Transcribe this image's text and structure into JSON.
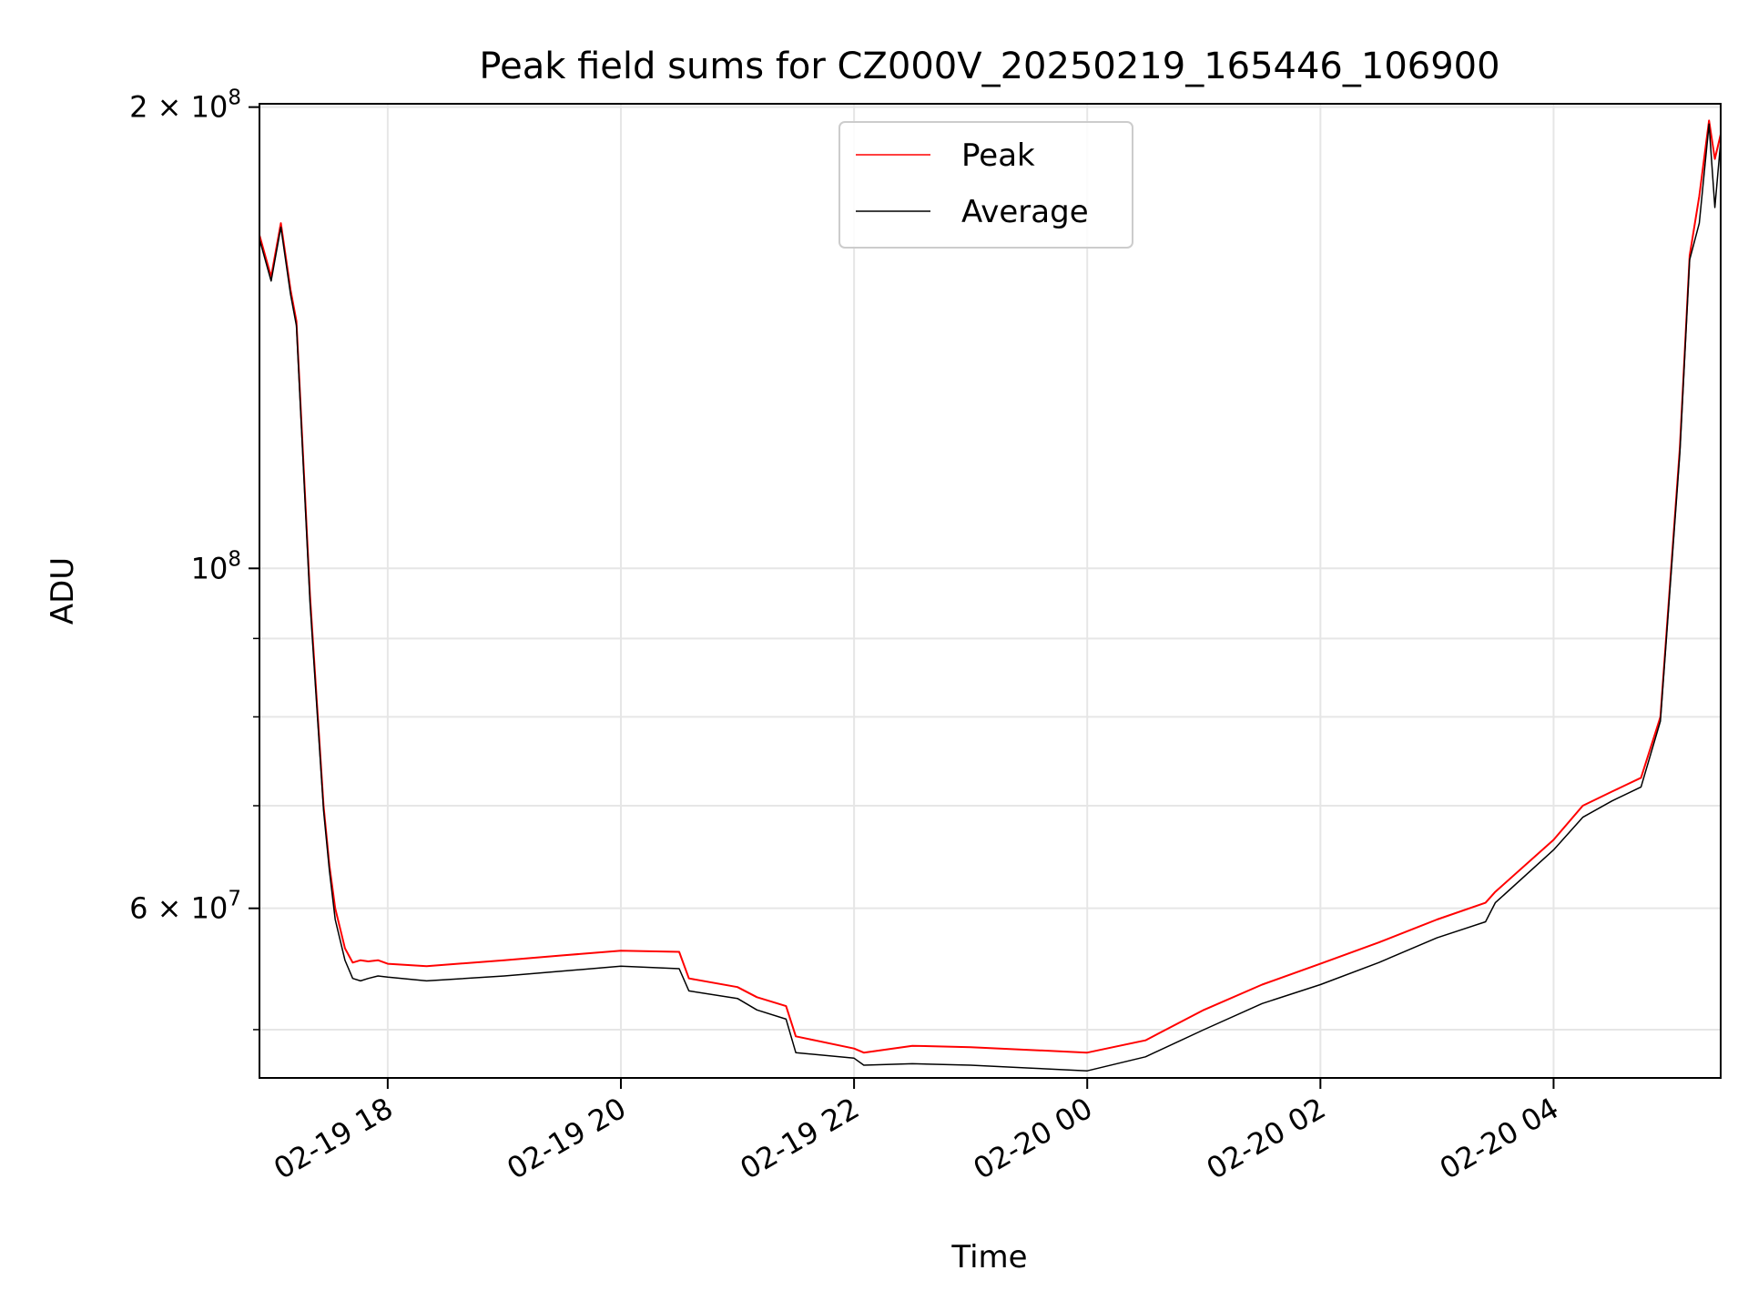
{
  "chart_data": {
    "type": "line",
    "title": "Peak field sums for CZ000V_20250219_165446_106900",
    "xlabel": "Time",
    "ylabel": "ADU",
    "y_scale": "log",
    "grid": true,
    "legend_placement": "upper center",
    "x_range": [
      "2025-02-19 16:54",
      "2025-02-20 05:26"
    ],
    "ylim": [
      46500000,
      201000000
    ],
    "x_ticks": [
      {
        "x": "2025-02-19 18:00",
        "label": "02-19 18"
      },
      {
        "x": "2025-02-19 20:00",
        "label": "02-19 20"
      },
      {
        "x": "2025-02-19 22:00",
        "label": "02-19 22"
      },
      {
        "x": "2025-02-20 00:00",
        "label": "02-20 00"
      },
      {
        "x": "2025-02-20 02:00",
        "label": "02-20 02"
      },
      {
        "x": "2025-02-20 04:00",
        "label": "02-20 04"
      }
    ],
    "y_ticks": [
      {
        "value": 200000000,
        "base": "2 × 10",
        "exp": "8"
      },
      {
        "value": 100000000,
        "base": "10",
        "exp": "8"
      },
      {
        "value": 60000000,
        "base": "6 × 10",
        "exp": "7"
      }
    ],
    "y_minor_ticks": [
      50000000,
      70000000,
      80000000,
      90000000
    ],
    "series": [
      {
        "name": "Peak",
        "color": "#ff0000",
        "x": [
          "2025-02-19 16:54",
          "2025-02-19 17:00",
          "2025-02-19 17:05",
          "2025-02-19 17:10",
          "2025-02-19 17:13",
          "2025-02-19 17:20",
          "2025-02-19 17:27",
          "2025-02-19 17:30",
          "2025-02-19 17:33",
          "2025-02-19 17:38",
          "2025-02-19 17:42",
          "2025-02-19 17:46",
          "2025-02-19 17:50",
          "2025-02-19 17:55",
          "2025-02-19 18:00",
          "2025-02-19 18:20",
          "2025-02-19 19:00",
          "2025-02-19 19:30",
          "2025-02-19 20:00",
          "2025-02-19 20:30",
          "2025-02-19 20:35",
          "2025-02-19 21:00",
          "2025-02-19 21:10",
          "2025-02-19 21:25",
          "2025-02-19 21:30",
          "2025-02-19 22:00",
          "2025-02-19 22:05",
          "2025-02-19 22:30",
          "2025-02-19 23:00",
          "2025-02-19 23:30",
          "2025-02-20 00:00",
          "2025-02-20 00:30",
          "2025-02-20 01:00",
          "2025-02-20 01:30",
          "2025-02-20 02:00",
          "2025-02-20 02:30",
          "2025-02-20 03:00",
          "2025-02-20 03:25",
          "2025-02-20 03:30",
          "2025-02-20 04:00",
          "2025-02-20 04:15",
          "2025-02-20 04:30",
          "2025-02-20 04:45",
          "2025-02-20 04:55",
          "2025-02-20 05:05",
          "2025-02-20 05:10",
          "2025-02-20 05:15",
          "2025-02-20 05:20",
          "2025-02-20 05:23",
          "2025-02-20 05:26"
        ],
        "y": [
          165000000,
          155000000,
          168000000,
          152000000,
          145000000,
          96000000,
          70000000,
          64000000,
          60000000,
          56500000,
          55300000,
          55500000,
          55400000,
          55500000,
          55200000,
          55000000,
          55500000,
          55900000,
          56300000,
          56200000,
          54000000,
          53300000,
          52500000,
          51800000,
          49500000,
          48600000,
          48300000,
          48800000,
          48700000,
          48500000,
          48300000,
          49200000,
          51500000,
          53500000,
          55200000,
          57000000,
          59000000,
          60500000,
          61500000,
          66500000,
          70000000,
          71500000,
          73000000,
          80000000,
          120000000,
          160000000,
          175000000,
          196000000,
          185000000,
          192000000
        ]
      },
      {
        "name": "Average",
        "color": "#000000",
        "x": [
          "2025-02-19 16:54",
          "2025-02-19 17:00",
          "2025-02-19 17:05",
          "2025-02-19 17:10",
          "2025-02-19 17:13",
          "2025-02-19 17:20",
          "2025-02-19 17:27",
          "2025-02-19 17:30",
          "2025-02-19 17:33",
          "2025-02-19 17:38",
          "2025-02-19 17:42",
          "2025-02-19 17:46",
          "2025-02-19 17:50",
          "2025-02-19 17:55",
          "2025-02-19 18:00",
          "2025-02-19 18:20",
          "2025-02-19 19:00",
          "2025-02-19 19:30",
          "2025-02-19 20:00",
          "2025-02-19 20:30",
          "2025-02-19 20:35",
          "2025-02-19 21:00",
          "2025-02-19 21:10",
          "2025-02-19 21:25",
          "2025-02-19 21:30",
          "2025-02-19 22:00",
          "2025-02-19 22:05",
          "2025-02-19 22:30",
          "2025-02-19 23:00",
          "2025-02-19 23:30",
          "2025-02-20 00:00",
          "2025-02-20 00:30",
          "2025-02-20 01:00",
          "2025-02-20 01:30",
          "2025-02-20 02:00",
          "2025-02-20 02:30",
          "2025-02-20 03:00",
          "2025-02-20 03:25",
          "2025-02-20 03:30",
          "2025-02-20 04:00",
          "2025-02-20 04:15",
          "2025-02-20 04:30",
          "2025-02-20 04:45",
          "2025-02-20 04:55",
          "2025-02-20 05:05",
          "2025-02-20 05:10",
          "2025-02-20 05:15",
          "2025-02-20 05:20",
          "2025-02-20 05:23",
          "2025-02-20 05:26"
        ],
        "y": [
          164000000,
          154000000,
          167000000,
          151000000,
          144000000,
          95000000,
          69500000,
          63500000,
          59000000,
          55500000,
          54000000,
          53800000,
          54000000,
          54200000,
          54100000,
          53800000,
          54200000,
          54600000,
          55000000,
          54800000,
          53000000,
          52400000,
          51500000,
          50800000,
          48300000,
          47900000,
          47400000,
          47500000,
          47400000,
          47200000,
          47000000,
          48000000,
          50000000,
          52000000,
          53500000,
          55300000,
          57400000,
          58800000,
          60500000,
          65500000,
          68800000,
          70500000,
          72000000,
          79500000,
          119000000,
          159000000,
          168000000,
          195000000,
          172000000,
          190000000
        ]
      }
    ]
  }
}
